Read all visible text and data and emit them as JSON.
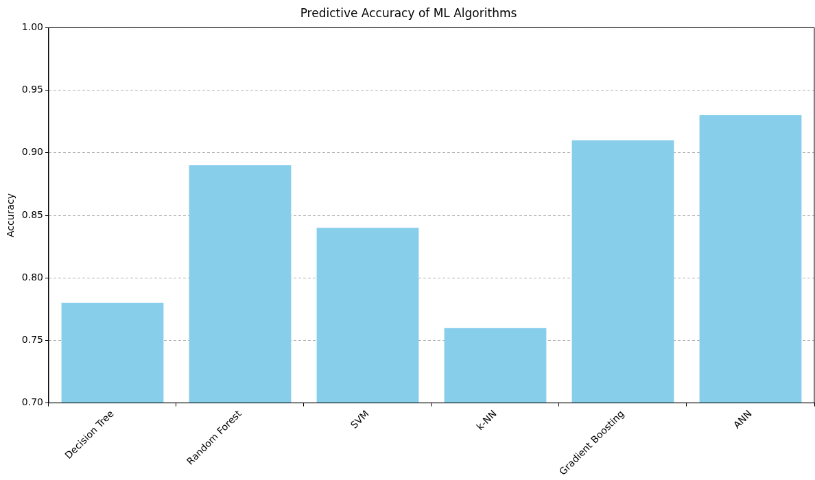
{
  "chart_data": {
    "type": "bar",
    "title": "Predictive Accuracy of ML Algorithms",
    "ylabel": "Accuracy",
    "categories": [
      "Decision Tree",
      "Random Forest",
      "SVM",
      "k-NN",
      "Gradient Boosting",
      "ANN"
    ],
    "values": [
      0.78,
      0.89,
      0.84,
      0.76,
      0.91,
      0.93
    ],
    "color": "#87ceeb",
    "ylim": [
      0.7,
      1.0
    ],
    "yticks": [
      {
        "value": 0.7,
        "label": "0.70"
      },
      {
        "value": 0.75,
        "label": "0.75"
      },
      {
        "value": 0.8,
        "label": "0.80"
      },
      {
        "value": 0.85,
        "label": "0.85"
      },
      {
        "value": 0.9,
        "label": "0.90"
      },
      {
        "value": 0.95,
        "label": "0.95"
      },
      {
        "value": 1.0,
        "label": "1.00"
      }
    ],
    "grid": "y"
  }
}
